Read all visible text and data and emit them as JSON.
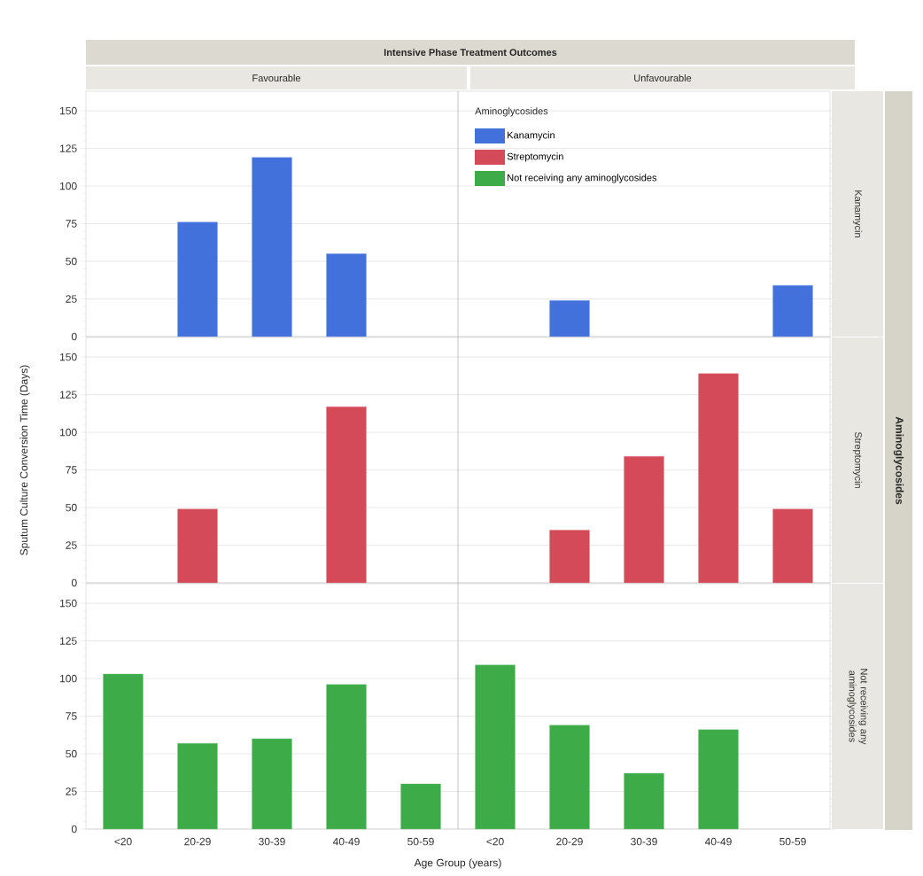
{
  "chart_data": [
    {
      "type": "bar",
      "annotations": [
        "Intensive Phase Treatment Outcomes",
        "Favourable",
        "Unfavourable",
        "Aminoglycosides"
      ],
      "y2label": "Kanamycin",
      "legend": "top right",
      "legend_title": "Aminoglycosides",
      "categories": [
        null,
        null,
        null,
        null,
        null,
        null,
        null,
        null,
        null,
        null
      ],
      "series": [
        {
          "name": "Kanamycin",
          "color": "#4371dc",
          "values": [
            null,
            76,
            119,
            55,
            null,
            null,
            24,
            null,
            null,
            34
          ]
        }
      ],
      "ylim": [
        0,
        163
      ],
      "yticks": [
        0,
        25,
        50,
        75,
        100,
        125,
        150
      ],
      "grid": "y",
      "tick_labels": "y"
    },
    {
      "type": "bar",
      "ylabel": "Sputum Culture Conversion Time (Days)",
      "y2label": "Streptomycin",
      "categories": [
        null,
        null,
        null,
        null,
        null,
        null,
        null,
        null,
        null,
        null
      ],
      "series": [
        {
          "name": "Streptomycin",
          "color": "#d44a58",
          "values": [
            null,
            49,
            null,
            117,
            null,
            null,
            35,
            84,
            139,
            49
          ]
        }
      ],
      "ylim": [
        0,
        163
      ],
      "yticks": [
        0,
        25,
        50,
        75,
        100,
        125,
        150
      ],
      "grid": "y",
      "tick_labels": "y"
    },
    {
      "type": "bar",
      "xlabel": "Age Group (years)",
      "y2label": "Not receiving any aminoglycosides",
      "categories": [
        "<20",
        "20-29",
        "30-39",
        "40-49",
        "50-59",
        "<20",
        "20-29",
        "30-39",
        "40-49",
        "50-59"
      ],
      "series": [
        {
          "name": "Not receiving any aminoglycosides",
          "color": "#3dac48",
          "values": [
            103,
            57,
            60,
            96,
            30,
            109,
            69,
            37,
            66,
            null
          ]
        }
      ],
      "ylim": [
        0,
        163
      ],
      "yticks": [
        0,
        25,
        50,
        75,
        100,
        125,
        150
      ],
      "grid": "y"
    }
  ]
}
